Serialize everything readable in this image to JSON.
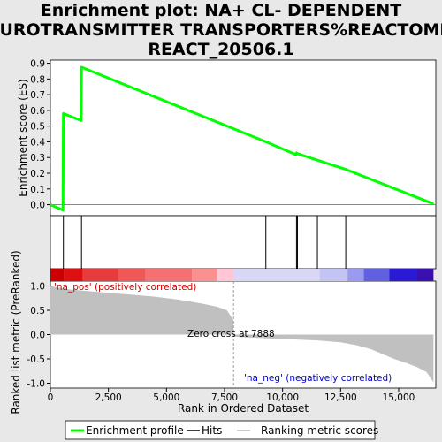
{
  "title_lines": [
    "Enrichment plot: NA+ CL- DEPENDENT",
    "NEUROTRANSMITTER TRANSPORTERS%REACTOME%",
    "REACT_20506.1"
  ],
  "chart_data": {
    "type": "line",
    "xlabel": "Rank in Ordered Dataset",
    "xlim": [
      0,
      16600
    ],
    "x_ticks": [
      0,
      2500,
      5000,
      7500,
      10000,
      12500,
      15000
    ],
    "x_tick_labels": [
      "0",
      "2,500",
      "5,000",
      "7,500",
      "10,000",
      "12,500",
      "15,000"
    ],
    "es_panel": {
      "ylabel": "Enrichment score (ES)",
      "ylim": [
        -0.07,
        0.92
      ],
      "y_ticks": [
        0.0,
        0.1,
        0.2,
        0.3,
        0.4,
        0.5,
        0.6,
        0.7,
        0.8,
        0.9
      ],
      "y_tick_labels": [
        "0.0",
        "0.1",
        "0.2",
        "0.3",
        "0.4",
        "0.5",
        "0.6",
        "0.7",
        "0.8",
        "0.9"
      ],
      "series": [
        {
          "name": "Enrichment profile",
          "x": [
            0,
            540,
            560,
            1320,
            1340,
            9280,
            10580,
            10600,
            10640,
            11500,
            12720,
            16500
          ],
          "y": [
            0.0,
            -0.035,
            0.58,
            0.535,
            0.875,
            0.4,
            0.318,
            0.33,
            0.325,
            0.283,
            0.225,
            0.005
          ]
        }
      ],
      "grid": false
    },
    "hits": [
      560,
      1340,
      9280,
      10600,
      10640,
      11500,
      12720
    ],
    "color_bar": {
      "segments": [
        {
          "x0": 0,
          "x1": 600,
          "color": "#cc0000"
        },
        {
          "x0": 600,
          "x1": 1400,
          "color": "#dd1111"
        },
        {
          "x0": 1400,
          "x1": 2900,
          "color": "#e83c3c"
        },
        {
          "x0": 2900,
          "x1": 4100,
          "color": "#f05858"
        },
        {
          "x0": 4100,
          "x1": 6100,
          "color": "#f57070"
        },
        {
          "x0": 6100,
          "x1": 7200,
          "color": "#fa9090"
        },
        {
          "x0": 7200,
          "x1": 7900,
          "color": "#ffc6d6"
        },
        {
          "x0": 7900,
          "x1": 11600,
          "color": "#d8d8f6"
        },
        {
          "x0": 11600,
          "x1": 12800,
          "color": "#c4c4f4"
        },
        {
          "x0": 12800,
          "x1": 13500,
          "color": "#9a9af0"
        },
        {
          "x0": 13500,
          "x1": 14600,
          "color": "#6060e0"
        },
        {
          "x0": 14600,
          "x1": 15800,
          "color": "#2a1ad6"
        },
        {
          "x0": 15800,
          "x1": 16500,
          "color": "#3a10b0"
        }
      ]
    },
    "ranked_panel": {
      "ylabel": "Ranked list metric (PreRanked)",
      "ylim": [
        -1.1,
        1.1
      ],
      "y_ticks": [
        1.0,
        0.5,
        0.0,
        -0.5,
        -1.0
      ],
      "y_tick_labels": [
        "1.0",
        "0.5",
        "0.0",
        "-0.5",
        "-1.0"
      ],
      "series": [
        {
          "name": "Ranking metric scores",
          "x": [
            0,
            300,
            800,
            1500,
            2500,
            3500,
            4500,
            5500,
            6500,
            7200,
            7600,
            7880,
            7890,
            8500,
            9500,
            10500,
            11500,
            12500,
            13200,
            13800,
            14300,
            14800,
            15300,
            15800,
            16200,
            16500
          ],
          "y": [
            1.0,
            0.97,
            0.93,
            0.9,
            0.86,
            0.82,
            0.78,
            0.72,
            0.64,
            0.57,
            0.5,
            0.3,
            -0.04,
            -0.06,
            -0.08,
            -0.1,
            -0.12,
            -0.16,
            -0.22,
            -0.3,
            -0.4,
            -0.5,
            -0.58,
            -0.67,
            -0.77,
            -0.98
          ]
        }
      ],
      "zero_cross_label": "Zero cross at 7888",
      "zero_cross_x": 7888,
      "pos_label": "'na_pos' (positively correlated)",
      "neg_label": "'na_neg' (negatively correlated)"
    },
    "legend": {
      "position": "bottom",
      "entries": [
        {
          "label": "Enrichment profile",
          "style": "green-line"
        },
        {
          "label": "Hits",
          "style": "black-line"
        },
        {
          "label": "Ranking metric scores",
          "style": "gray-line"
        }
      ]
    },
    "colors": {
      "profile": "#00ff00",
      "hits": "#000000",
      "metric_fill": "#c0c0c0",
      "pos_text": "#cc0000",
      "neg_text": "#0000cc"
    }
  }
}
